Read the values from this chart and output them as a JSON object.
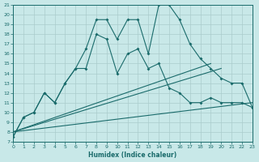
{
  "xlabel": "Humidex (Indice chaleur)",
  "bg_color": "#c8e8e8",
  "grid_color": "#aacccc",
  "line_color": "#1a6b6b",
  "xlim": [
    0,
    23
  ],
  "ylim": [
    7,
    21
  ],
  "xticks": [
    0,
    1,
    2,
    3,
    4,
    5,
    6,
    7,
    8,
    9,
    10,
    11,
    12,
    13,
    14,
    15,
    16,
    17,
    18,
    19,
    20,
    21,
    22,
    23
  ],
  "yticks": [
    7,
    8,
    9,
    10,
    11,
    12,
    13,
    14,
    15,
    16,
    17,
    18,
    19,
    20,
    21
  ],
  "series1_x": [
    0,
    1,
    2,
    3,
    4,
    5,
    6,
    7,
    8,
    9,
    10,
    11,
    12,
    13,
    14,
    15,
    16,
    17,
    18,
    19,
    20,
    21,
    22,
    23
  ],
  "series1_y": [
    7.5,
    9.5,
    10.0,
    12.0,
    11.0,
    13.0,
    14.5,
    16.5,
    19.5,
    19.5,
    17.5,
    19.5,
    19.5,
    16.0,
    21.0,
    21.0,
    19.5,
    17.0,
    15.5,
    14.5,
    13.5,
    13.0,
    13.0,
    10.5
  ],
  "series2_x": [
    0,
    1,
    2,
    3,
    4,
    5,
    6,
    7,
    8,
    9,
    10,
    11,
    12,
    13,
    14,
    15,
    16,
    17,
    18,
    19,
    20,
    21,
    22,
    23
  ],
  "series2_y": [
    7.5,
    9.5,
    10.0,
    12.0,
    11.0,
    13.0,
    14.5,
    14.5,
    18.0,
    17.5,
    14.0,
    16.0,
    16.5,
    14.5,
    15.0,
    12.5,
    12.0,
    11.0,
    11.0,
    11.5,
    11.0,
    11.0,
    11.0,
    10.5
  ],
  "series3_x": [
    0,
    19
  ],
  "series3_y": [
    8.0,
    15.0
  ],
  "series4_x": [
    0,
    20
  ],
  "series4_y": [
    8.0,
    14.5
  ],
  "series5_x": [
    0,
    23
  ],
  "series5_y": [
    8.0,
    11.0
  ]
}
